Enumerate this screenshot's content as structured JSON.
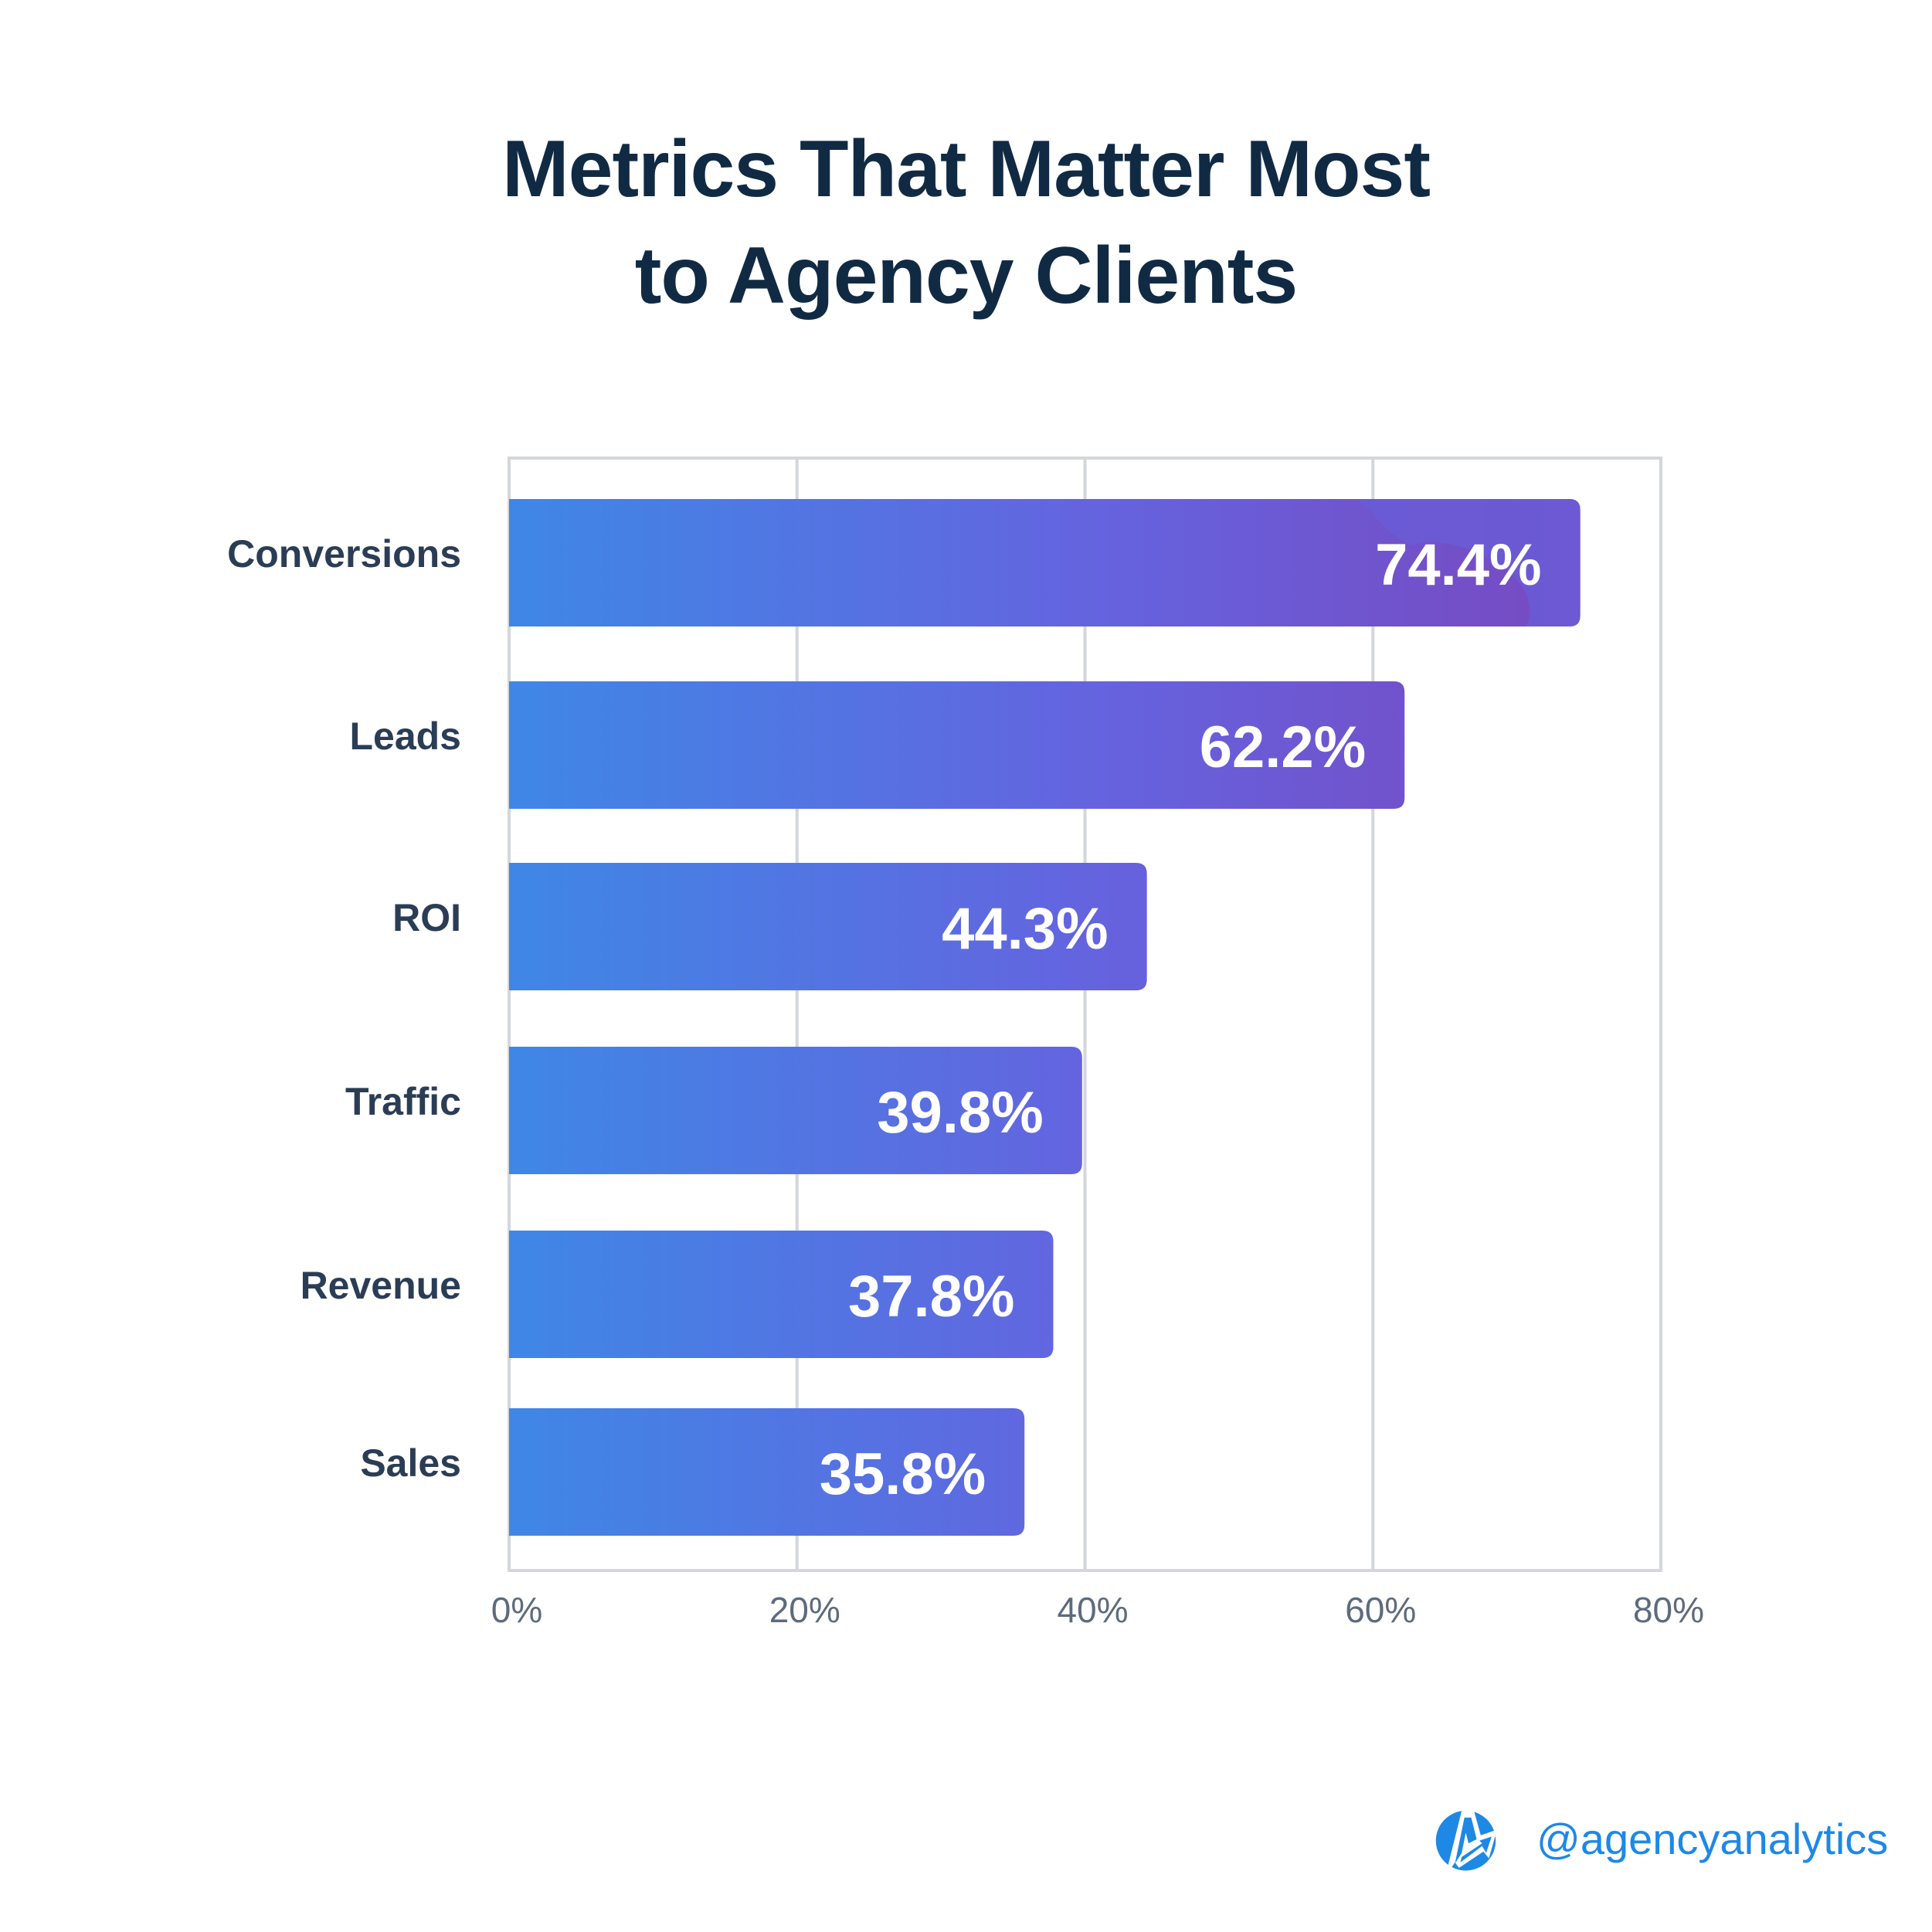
{
  "title": {
    "line1": "Metrics That Matter Most",
    "line2": "to Agency Clients"
  },
  "chart_data": {
    "type": "bar",
    "orientation": "horizontal",
    "title": "Metrics That Matter Most to Agency Clients",
    "categories": [
      "Conversions",
      "Leads",
      "ROI",
      "Traffic",
      "Revenue",
      "Sales"
    ],
    "values": [
      74.4,
      62.2,
      44.3,
      39.8,
      37.8,
      35.8
    ],
    "value_labels": [
      "74.4%",
      "62.2%",
      "44.3%",
      "39.8%",
      "37.8%",
      "35.8%"
    ],
    "xlabel": "",
    "ylabel": "",
    "xlim": [
      0,
      80
    ],
    "xticks": [
      0,
      20,
      40,
      60,
      80
    ],
    "xtick_labels": [
      "0%",
      "20%",
      "40%",
      "60%",
      "80%"
    ],
    "grid": true,
    "legend": "none",
    "colors": {
      "bar_gradient_start": "#3f87e6",
      "bar_gradient_mid": "#6563df",
      "bar_gradient_end": "#7849c0",
      "bar_highlight": "#6a5cd6",
      "gridline": "#d3d6db",
      "category_text": "#2b3d55",
      "tick_text": "#5d6b7c",
      "value_text": "#ffffff"
    }
  },
  "brand": {
    "icon": "agencyanalytics-logo-icon",
    "handle": "@agencyanalytics",
    "color": "#1e88e5"
  }
}
